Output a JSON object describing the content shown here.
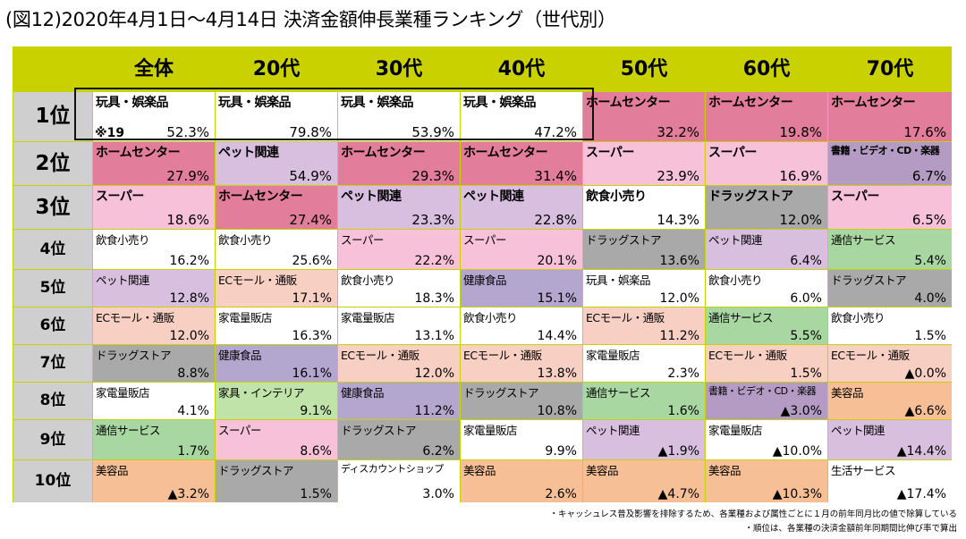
{
  "title": "(図12)2020年4月1日～4月14日 決済金額伸長業種ランキング（世代別）",
  "corner_note": "※19",
  "footnotes": [
    "・キャッシュレス普及影響を排除するため、各業種および属性ごとに１月の前年同月比の値で除算している",
    "・順位は、各業種の決済金額前年同期間比伸び率で算出"
  ],
  "colors": {
    "header": "#c9d200",
    "rank": "#cfcfcf",
    "玩具・娯楽品": "#ffffff",
    "ホームセンター": "#e27d9c",
    "ペット関連": "#d8bfe0",
    "スーパー": "#f7c1d9",
    "飲食小売り": "#ffffff",
    "ドラッグストア": "#a9a9a9",
    "書籍・ビデオ・CD・楽器": "#b49bc4",
    "通信サービス": "#a9d7a2",
    "ECモール・通販": "#f8cfc3",
    "健康食品": "#b3a6cf",
    "家電量販店": "#ffffff",
    "家具・インテリア": "#bfe3a8",
    "美容品": "#f7bf95",
    "ディスカウントショップ": "#ffffff",
    "生活サービス": "#ffffff"
  },
  "chart_data": {
    "type": "table",
    "columns": [
      "全体",
      "20代",
      "30代",
      "40代",
      "50代",
      "60代",
      "70代"
    ],
    "ranks": [
      "1位",
      "2位",
      "3位",
      "4位",
      "5位",
      "6位",
      "7位",
      "8位",
      "9位",
      "10位"
    ],
    "rows": [
      [
        [
          "玩具・娯楽品",
          "52.3%"
        ],
        [
          "玩具・娯楽品",
          "79.8%"
        ],
        [
          "玩具・娯楽品",
          "53.9%"
        ],
        [
          "玩具・娯楽品",
          "47.2%"
        ],
        [
          "ホームセンター",
          "32.2%"
        ],
        [
          "ホームセンター",
          "19.8%"
        ],
        [
          "ホームセンター",
          "17.6%"
        ]
      ],
      [
        [
          "ホームセンター",
          "27.9%"
        ],
        [
          "ペット関連",
          "54.9%"
        ],
        [
          "ホームセンター",
          "29.3%"
        ],
        [
          "ホームセンター",
          "31.4%"
        ],
        [
          "スーパー",
          "23.9%"
        ],
        [
          "スーパー",
          "16.9%"
        ],
        [
          "書籍・ビデオ・CD・楽器",
          "6.7%"
        ]
      ],
      [
        [
          "スーパー",
          "18.6%"
        ],
        [
          "ホームセンター",
          "27.4%"
        ],
        [
          "ペット関連",
          "23.3%"
        ],
        [
          "ペット関連",
          "22.8%"
        ],
        [
          "飲食小売り",
          "14.3%"
        ],
        [
          "ドラッグストア",
          "12.0%"
        ],
        [
          "スーパー",
          "6.5%"
        ]
      ],
      [
        [
          "飲食小売り",
          "16.2%"
        ],
        [
          "飲食小売り",
          "25.6%"
        ],
        [
          "スーパー",
          "22.2%"
        ],
        [
          "スーパー",
          "20.1%"
        ],
        [
          "ドラッグストア",
          "13.6%"
        ],
        [
          "ペット関連",
          "6.4%"
        ],
        [
          "通信サービス",
          "5.4%"
        ]
      ],
      [
        [
          "ペット関連",
          "12.8%"
        ],
        [
          "ECモール・通販",
          "17.1%"
        ],
        [
          "飲食小売り",
          "18.3%"
        ],
        [
          "健康食品",
          "15.1%"
        ],
        [
          "玩具・娯楽品",
          "12.0%"
        ],
        [
          "飲食小売り",
          "6.0%"
        ],
        [
          "ドラッグストア",
          "4.0%"
        ]
      ],
      [
        [
          "ECモール・通販",
          "12.0%"
        ],
        [
          "家電量販店",
          "16.3%"
        ],
        [
          "家電量販店",
          "13.1%"
        ],
        [
          "飲食小売り",
          "14.4%"
        ],
        [
          "ECモール・通販",
          "11.2%"
        ],
        [
          "通信サービス",
          "5.5%"
        ],
        [
          "飲食小売り",
          "1.5%"
        ]
      ],
      [
        [
          "ドラッグストア",
          "8.8%"
        ],
        [
          "健康食品",
          "16.1%"
        ],
        [
          "ECモール・通販",
          "12.0%"
        ],
        [
          "ECモール・通販",
          "13.8%"
        ],
        [
          "家電量販店",
          "2.3%"
        ],
        [
          "ECモール・通販",
          "1.5%"
        ],
        [
          "ECモール・通販",
          "▲0.0%"
        ]
      ],
      [
        [
          "家電量販店",
          "4.1%"
        ],
        [
          "家具・インテリア",
          "9.1%"
        ],
        [
          "健康食品",
          "11.2%"
        ],
        [
          "ドラッグストア",
          "10.8%"
        ],
        [
          "通信サービス",
          "1.6%"
        ],
        [
          "書籍・ビデオ・CD・楽器",
          "▲3.0%"
        ],
        [
          "美容品",
          "▲6.6%"
        ]
      ],
      [
        [
          "通信サービス",
          "1.7%"
        ],
        [
          "スーパー",
          "8.6%"
        ],
        [
          "ドラッグストア",
          "6.2%"
        ],
        [
          "家電量販店",
          "9.9%"
        ],
        [
          "ペット関連",
          "▲1.9%"
        ],
        [
          "家電量販店",
          "▲10.0%"
        ],
        [
          "ペット関連",
          "▲14.4%"
        ]
      ],
      [
        [
          "美容品",
          "▲3.2%"
        ],
        [
          "ドラッグストア",
          "1.5%"
        ],
        [
          "ディスカウントショップ",
          "3.0%"
        ],
        [
          "美容品",
          "2.6%"
        ],
        [
          "美容品",
          "▲4.7%"
        ],
        [
          "美容品",
          "▲10.3%"
        ],
        [
          "生活サービス",
          "▲17.4%"
        ]
      ]
    ]
  }
}
